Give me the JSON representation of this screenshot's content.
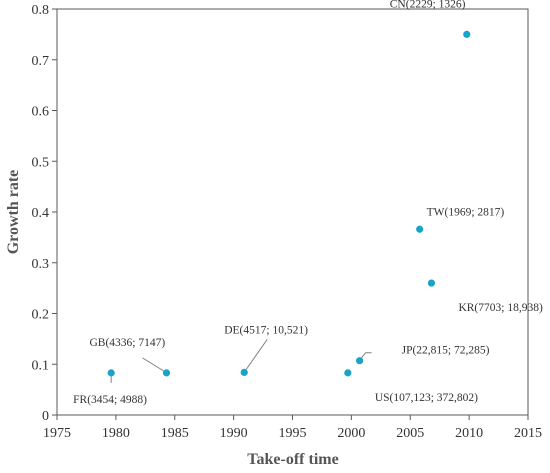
{
  "chart_data": {
    "type": "scatter",
    "xlabel": "Take-off time",
    "ylabel": "Growth rate",
    "xlim": [
      1975,
      2015
    ],
    "ylim": [
      0,
      0.8
    ],
    "x_ticks": [
      1975,
      1980,
      1985,
      1990,
      1995,
      2000,
      2005,
      2010,
      2015
    ],
    "y_ticks": [
      0,
      0.1,
      0.2,
      0.3,
      0.4,
      0.5,
      0.6,
      0.7,
      0.8
    ],
    "grid": false,
    "marker_color": "#1aa3c8",
    "points": [
      {
        "x": 1979.6,
        "y": 0.083,
        "label": "FR(3454; 4988)",
        "anchor": "bottom-left",
        "leader": true
      },
      {
        "x": 1984.3,
        "y": 0.083,
        "label": "GB(4336; 7147)",
        "anchor": "top-left",
        "leader": true
      },
      {
        "x": 1990.9,
        "y": 0.084,
        "label": "DE(4517; 10,521)",
        "anchor": "top",
        "leader": true
      },
      {
        "x": 1999.7,
        "y": 0.083,
        "label": "US(107,123; 372,802)",
        "anchor": "bottom-right",
        "leader": false
      },
      {
        "x": 2000.7,
        "y": 0.107,
        "label": "JP(22,815; 72,285)",
        "anchor": "right",
        "leader": true
      },
      {
        "x": 2005.8,
        "y": 0.366,
        "label": "TW(1969; 2817)",
        "anchor": "top-right",
        "leader": false
      },
      {
        "x": 2006.8,
        "y": 0.26,
        "label": "KR(7703; 18,938)",
        "anchor": "bottom-right",
        "leader": false
      },
      {
        "x": 2009.8,
        "y": 0.75,
        "label": "CN(2229; 1326)",
        "anchor": "top-left",
        "leader": false
      }
    ]
  }
}
